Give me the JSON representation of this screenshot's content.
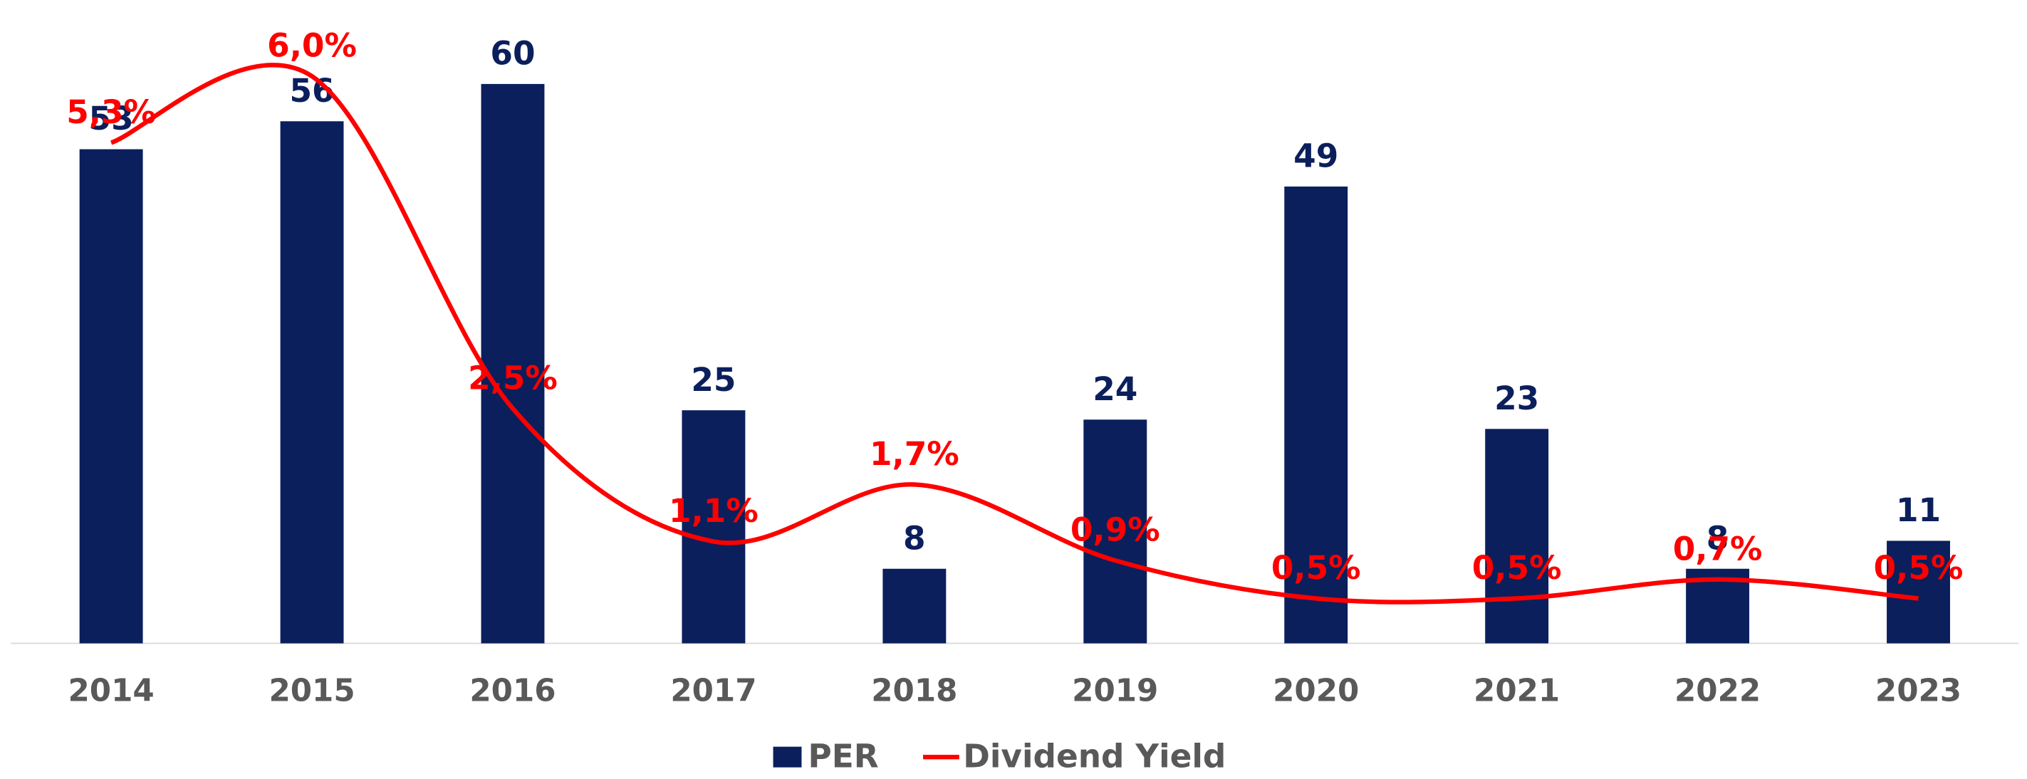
{
  "chart_data": {
    "type": "bar",
    "categories": [
      "2014",
      "2015",
      "2016",
      "2017",
      "2018",
      "2019",
      "2020",
      "2021",
      "2022",
      "2023"
    ],
    "series": [
      {
        "name": "PER",
        "color": "#0b1f5c",
        "values": [
          53,
          56,
          60,
          25,
          8,
          24,
          49,
          23,
          8,
          11
        ]
      },
      {
        "name": "Dividend Yield",
        "color": "#ff0000",
        "type": "line",
        "axis": "y2",
        "values": [
          5.3,
          6.0,
          2.5,
          1.1,
          1.7,
          0.9,
          0.5,
          0.5,
          0.7,
          0.5
        ],
        "value_labels": [
          "5,3%",
          "6,0%",
          "2,5%",
          "1,1%",
          "1,7%",
          "0,9%",
          "0,5%",
          "0,5%",
          "0,7%",
          "0,5%"
        ]
      }
    ],
    "ylim": [
      0,
      60
    ],
    "y2lim": [
      0,
      6
    ],
    "legend": "bottom"
  }
}
